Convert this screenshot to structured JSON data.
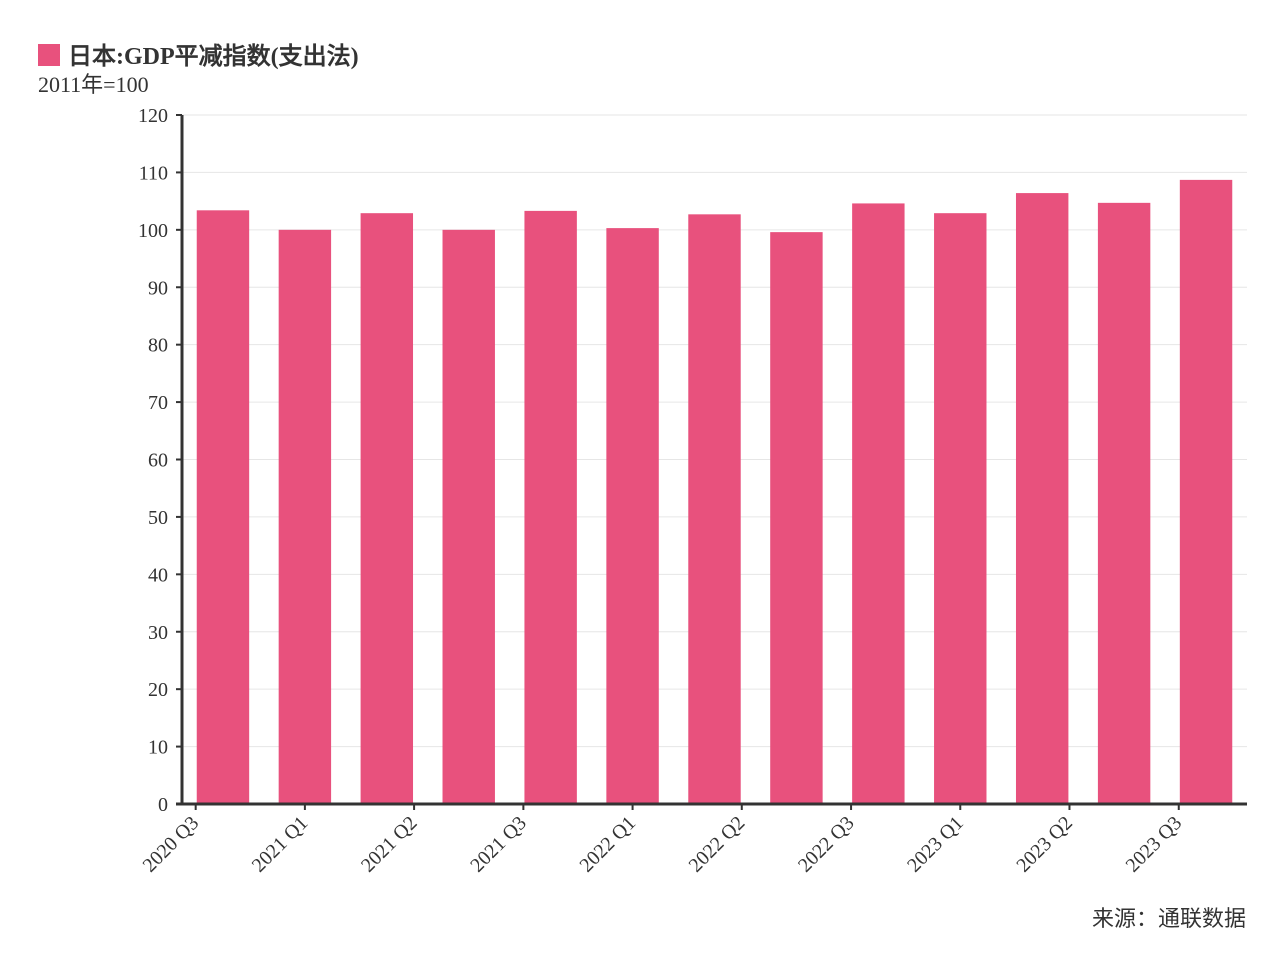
{
  "chart_data": {
    "type": "bar",
    "title": "日本:GDP平减指数(支出法)",
    "subtitle": "2011年=100",
    "source": "来源：通联数据",
    "color": "#e8517d",
    "x": [
      0,
      1,
      2,
      3,
      4,
      5,
      6,
      7,
      8,
      9,
      10,
      11,
      12
    ],
    "values": [
      103.4,
      100.0,
      102.9,
      100.0,
      103.3,
      100.3,
      102.7,
      99.6,
      104.6,
      102.9,
      106.4,
      104.7,
      108.7
    ],
    "xlim": [
      -0.5,
      12.5
    ],
    "xticks": [
      {
        "value": -0.333,
        "label": "2020 Q3"
      },
      {
        "value": 1.0,
        "label": "2021 Q1"
      },
      {
        "value": 2.333,
        "label": "2021 Q2"
      },
      {
        "value": 3.667,
        "label": "2021 Q3"
      },
      {
        "value": 5.0,
        "label": "2022 Q1"
      },
      {
        "value": 6.333,
        "label": "2022 Q2"
      },
      {
        "value": 7.667,
        "label": "2022 Q3"
      },
      {
        "value": 9.0,
        "label": "2023 Q1"
      },
      {
        "value": 10.333,
        "label": "2023 Q2"
      },
      {
        "value": 11.667,
        "label": "2023 Q3"
      }
    ],
    "ylim": [
      0,
      120
    ],
    "yticks": [
      0,
      10,
      20,
      30,
      40,
      50,
      60,
      70,
      80,
      90,
      100,
      110,
      120
    ],
    "grid": true
  }
}
